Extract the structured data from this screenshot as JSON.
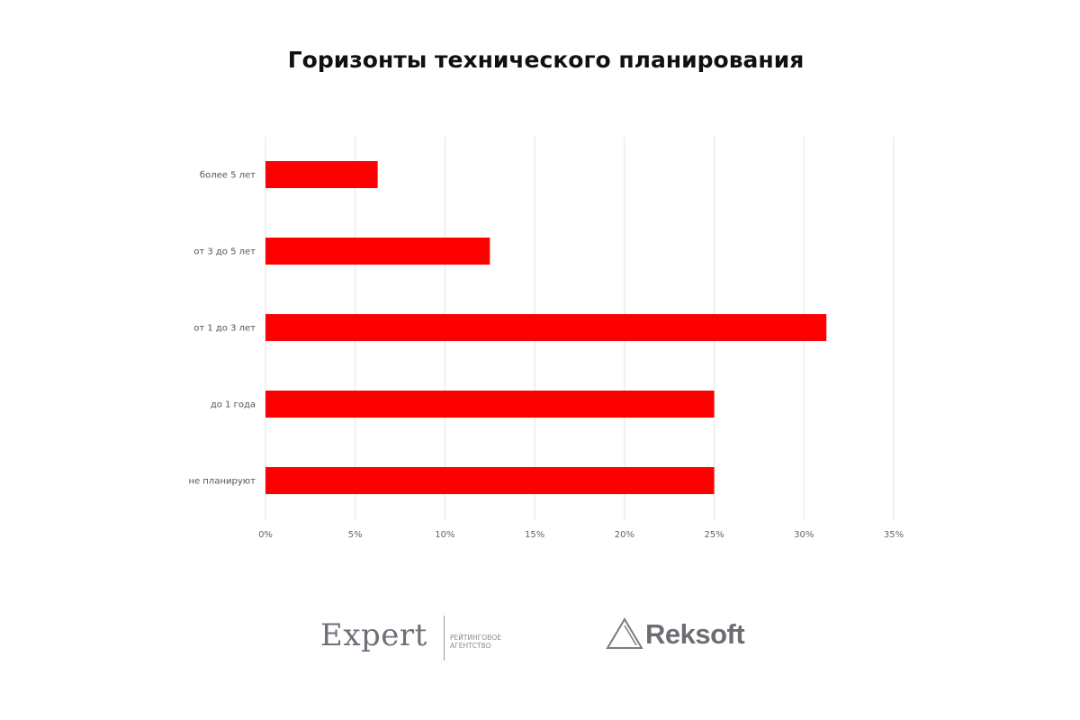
{
  "chart_data": {
    "type": "bar",
    "orientation": "horizontal",
    "title": "Горизонты технического планирования",
    "categories": [
      "более 5 лет",
      "от 3 до 5 лет",
      "от 1 до 3 лет",
      "до 1 года",
      "не планируют"
    ],
    "values": [
      6.25,
      12.5,
      31.25,
      25,
      25
    ],
    "xlim": [
      0,
      35
    ],
    "x_ticks": [
      "0%",
      "5%",
      "10%",
      "15%",
      "20%",
      "25%",
      "30%",
      "35%"
    ],
    "grid": true,
    "bar_color": "#ff0000"
  },
  "logos": {
    "expert": {
      "name": "Expert",
      "subtitle_line1": "РЕЙТИНГОВОЕ",
      "subtitle_line2": "АГЕНТСТВО"
    },
    "reksoft": {
      "name": "Reksoft"
    }
  }
}
